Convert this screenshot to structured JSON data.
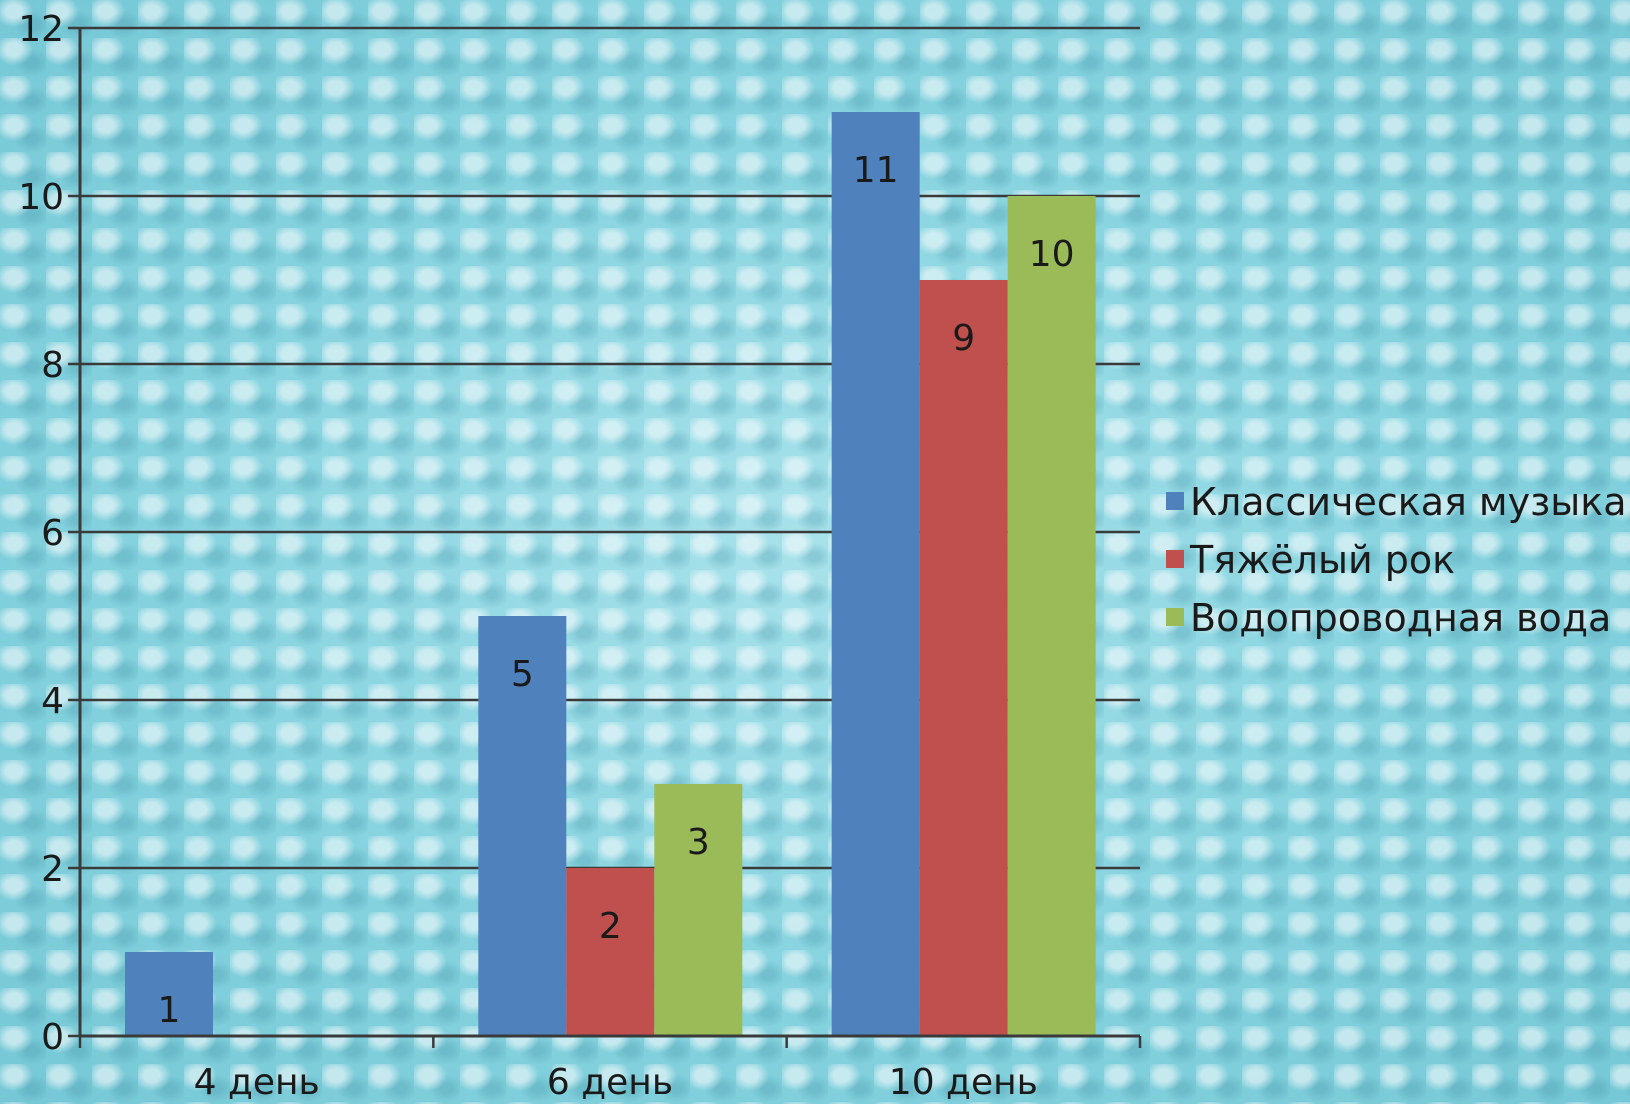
{
  "chart_data": {
    "type": "bar",
    "title": "",
    "xlabel": "",
    "ylabel": "",
    "categories": [
      "4 день",
      "6 день",
      "10 день"
    ],
    "series": [
      {
        "name": "Классическая музыка",
        "values": [
          1,
          5,
          11
        ],
        "color": "#4f81bd"
      },
      {
        "name": "Тяжёлый рок",
        "values": [
          0,
          2,
          9
        ],
        "color": "#c0504d"
      },
      {
        "name": "Водопроводная вода",
        "values": [
          0,
          3,
          10
        ],
        "color": "#9bbb59"
      }
    ],
    "ylim": [
      0,
      12
    ],
    "yticks": [
      0,
      2,
      4,
      6,
      8,
      10,
      12
    ],
    "grid": true,
    "legend_position": "right"
  }
}
